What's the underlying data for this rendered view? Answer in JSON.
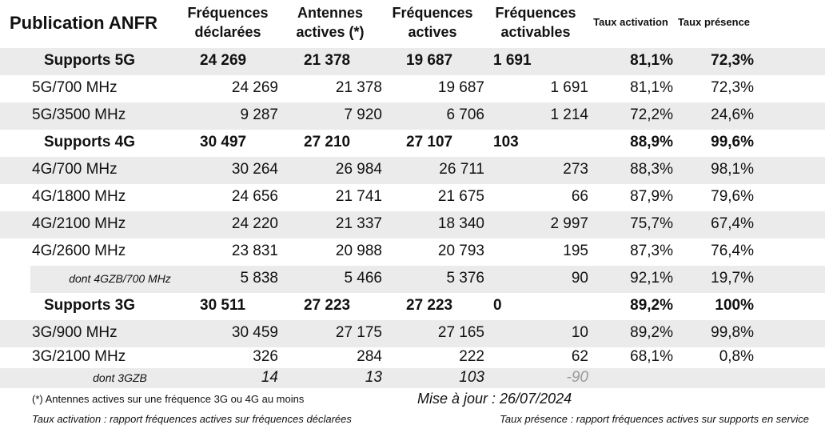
{
  "header": {
    "title": "Publication ANFR",
    "columns": [
      [
        "Fréquences",
        "déclarées"
      ],
      [
        "Antennes",
        "actives (*)"
      ],
      [
        "Fréquences",
        "actives"
      ],
      [
        "Fréquences",
        "activables"
      ],
      [
        "Taux activation"
      ],
      [
        "Taux présence"
      ]
    ]
  },
  "sections": [
    {
      "label": "Supports 5G",
      "values": [
        "24 269",
        "21 378",
        "19 687",
        "1 691",
        "81,1%",
        "72,3%"
      ],
      "rows": [
        {
          "label": "5G/700 MHz",
          "values": [
            "24 269",
            "21 378",
            "19 687",
            "1 691",
            "81,1%",
            "72,3%"
          ]
        },
        {
          "label": "5G/3500 MHz",
          "values": [
            "9 287",
            "7 920",
            "6 706",
            "1 214",
            "72,2%",
            "24,6%"
          ]
        }
      ],
      "details": []
    },
    {
      "label": "Supports 4G",
      "values": [
        "30 497",
        "27 210",
        "27 107",
        "103",
        "88,9%",
        "99,6%"
      ],
      "rows": [
        {
          "label": "4G/700 MHz",
          "values": [
            "30 264",
            "26 984",
            "26 711",
            "273",
            "88,3%",
            "98,1%"
          ]
        },
        {
          "label": "4G/1800 MHz",
          "values": [
            "24 656",
            "21 741",
            "21 675",
            "66",
            "87,9%",
            "79,6%"
          ]
        },
        {
          "label": "4G/2100 MHz",
          "values": [
            "24 220",
            "21 337",
            "18 340",
            "2 997",
            "75,7%",
            "67,4%"
          ]
        },
        {
          "label": "4G/2600 MHz",
          "values": [
            "23 831",
            "20 988",
            "20 793",
            "195",
            "87,3%",
            "76,4%"
          ]
        }
      ],
      "details": [
        {
          "label": "dont 4GZB/700 MHz",
          "values": [
            "5 838",
            "5 466",
            "5 376",
            "90",
            "92,1%",
            "19,7%"
          ]
        }
      ]
    },
    {
      "label": "Supports 3G",
      "values": [
        "30 511",
        "27 223",
        "27 223",
        "0",
        "89,2%",
        "100%"
      ],
      "rows": [
        {
          "label": "3G/900 MHz",
          "values": [
            "30 459",
            "27 175",
            "27 165",
            "10",
            "89,2%",
            "99,8%"
          ]
        },
        {
          "label": "3G/2100 MHz",
          "values": [
            "326",
            "284",
            "222",
            "62",
            "68,1%",
            "0,8%"
          ]
        }
      ],
      "details": [
        {
          "label": "dont 3GZB",
          "values": [
            "14",
            "13",
            "103",
            "-90"
          ]
        }
      ]
    }
  ],
  "footer": {
    "note": "(*) Antennes actives sur une fréquence 3G ou 4G au moins",
    "updated": "Mise à jour : 26/07/2024",
    "activation": "Taux activation : rapport fréquences actives sur fréquences déclarées",
    "presence": "Taux présence : rapport fréquences actives sur supports en service"
  }
}
